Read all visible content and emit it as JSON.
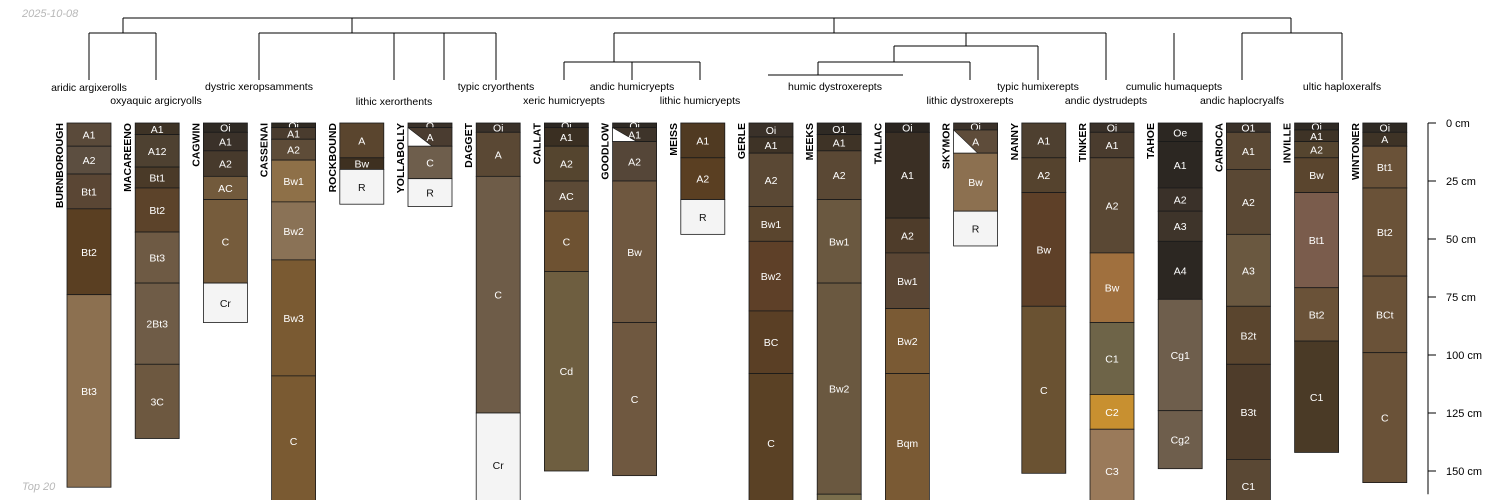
{
  "date": "2025-10-08",
  "footer": "Top 20",
  "depth_axis": {
    "unit": "cm",
    "max_depth": 160,
    "ticks": [
      {
        "depth": 0,
        "label": "0 cm"
      },
      {
        "depth": 25,
        "label": "25 cm"
      },
      {
        "depth": 50,
        "label": "50 cm"
      },
      {
        "depth": 75,
        "label": "75 cm"
      },
      {
        "depth": 100,
        "label": "100 cm"
      },
      {
        "depth": 125,
        "label": "125 cm"
      },
      {
        "depth": 150,
        "label": "150 cm"
      }
    ]
  },
  "taxa": [
    {
      "name": "aridic argixerolls",
      "profile": 0
    },
    {
      "name": "oxyaquic argicryolls",
      "profile": 1
    },
    {
      "name": "dystric xeropsamments",
      "profile": 3
    },
    {
      "name": "lithic xerorthents",
      "profile": 4
    },
    {
      "name": "typic cryorthents",
      "profile": 6
    },
    {
      "name": "xeric humicryepts",
      "profile": 7
    },
    {
      "name": "andic humicryepts",
      "profile": 8
    },
    {
      "name": "lithic humicryepts",
      "profile": 9
    },
    {
      "name": "humic dystroxerepts",
      "profile": 11
    },
    {
      "name": "lithic dystroxerepts",
      "profile": 13
    },
    {
      "name": "typic humixerepts",
      "profile": 14
    },
    {
      "name": "andic dystrudepts",
      "profile": 15
    },
    {
      "name": "cumulic humaquepts",
      "profile": 16
    },
    {
      "name": "andic haplocryalfs",
      "profile": 17
    },
    {
      "name": "ultic haploxeralfs",
      "profile": 19
    }
  ],
  "profiles": [
    {
      "name": "BURNBOROUGH",
      "bottom": 157,
      "horizons": [
        {
          "name": "A1",
          "top": 0,
          "bottom": 10,
          "color": "#5a4a3a"
        },
        {
          "name": "A2",
          "top": 10,
          "bottom": 22,
          "color": "#5c4e40"
        },
        {
          "name": "Bt1",
          "top": 22,
          "bottom": 37,
          "color": "#5a4634"
        },
        {
          "name": "Bt2",
          "top": 37,
          "bottom": 74,
          "color": "#5a3f22"
        },
        {
          "name": "Bt3",
          "top": 74,
          "bottom": 157,
          "color": "#8c7050"
        }
      ]
    },
    {
      "name": "MACAREENO",
      "bottom": 136,
      "horizons": [
        {
          "name": "A1",
          "top": 0,
          "bottom": 5,
          "color": "#3e3326"
        },
        {
          "name": "A12",
          "top": 5,
          "bottom": 19,
          "color": "#4e4131"
        },
        {
          "name": "Bt1",
          "top": 19,
          "bottom": 28,
          "color": "#4a3a28"
        },
        {
          "name": "Bt2",
          "top": 28,
          "bottom": 47,
          "color": "#5c432a"
        },
        {
          "name": "Bt3",
          "top": 47,
          "bottom": 69,
          "color": "#6e5a44"
        },
        {
          "name": "2Bt3",
          "top": 69,
          "bottom": 104,
          "color": "#6f5c47"
        },
        {
          "name": "3C",
          "top": 104,
          "bottom": 136,
          "color": "#6d5840"
        }
      ]
    },
    {
      "name": "CAGWIN",
      "bottom": 86,
      "horizons": [
        {
          "name": "Oi",
          "top": 0,
          "bottom": 4,
          "color": "#2f2a24"
        },
        {
          "name": "A1",
          "top": 4,
          "bottom": 12,
          "color": "#3a3129"
        },
        {
          "name": "A2",
          "top": 12,
          "bottom": 23,
          "color": "#473a2c"
        },
        {
          "name": "AC",
          "top": 23,
          "bottom": 33,
          "color": "#725a3c"
        },
        {
          "name": "C",
          "top": 33,
          "bottom": 69,
          "color": "#765c3c"
        },
        {
          "name": "Cr",
          "top": 69,
          "bottom": 86,
          "color": "#f4f4f4",
          "light": true
        }
      ]
    },
    {
      "name": "CASSENAI",
      "bottom": 165,
      "horizons": [
        {
          "name": "Oi",
          "top": 0,
          "bottom": 2,
          "color": "#302a22"
        },
        {
          "name": "A1",
          "top": 2,
          "bottom": 7,
          "color": "#4a3c2e"
        },
        {
          "name": "A2",
          "top": 7,
          "bottom": 16,
          "color": "#5e4c38"
        },
        {
          "name": "Bw1",
          "top": 16,
          "bottom": 34,
          "color": "#8e7048"
        },
        {
          "name": "Bw2",
          "top": 34,
          "bottom": 59,
          "color": "#8a7256"
        },
        {
          "name": "Bw3",
          "top": 59,
          "bottom": 109,
          "color": "#7a5a32"
        },
        {
          "name": "C",
          "top": 109,
          "bottom": 165,
          "color": "#7a5a32"
        }
      ]
    },
    {
      "name": "ROCKBOUND",
      "bottom": 35,
      "horizons": [
        {
          "name": "A",
          "top": 0,
          "bottom": 15,
          "color": "#5a452e"
        },
        {
          "name": "Bw",
          "top": 15,
          "bottom": 20,
          "color": "#3e3020"
        },
        {
          "name": "R",
          "top": 20,
          "bottom": 35,
          "color": "#f4f4f4",
          "light": true
        }
      ]
    },
    {
      "name": "YOLLABOLLY",
      "bottom": 36,
      "horizons": [
        {
          "name": "O",
          "top": 0,
          "bottom": 2,
          "color": "#3a3129"
        },
        {
          "name": "A",
          "top": 2,
          "bottom": 10,
          "color": "#4a3c30",
          "wedge": true
        },
        {
          "name": "C",
          "top": 10,
          "bottom": 24,
          "color": "#6e5e4c"
        },
        {
          "name": "R",
          "top": 24,
          "bottom": 36,
          "color": "#f4f4f4",
          "light": true
        }
      ]
    },
    {
      "name": "DAGGET",
      "bottom": 170,
      "horizons": [
        {
          "name": "Oi",
          "top": 0,
          "bottom": 4,
          "color": "#3a3129"
        },
        {
          "name": "A",
          "top": 4,
          "bottom": 23,
          "color": "#5a4834"
        },
        {
          "name": "C",
          "top": 23,
          "bottom": 125,
          "color": "#6e5c48"
        },
        {
          "name": "Cr",
          "top": 125,
          "bottom": 170,
          "color": "#f4f4f4",
          "light": true
        }
      ]
    },
    {
      "name": "CALLAT",
      "bottom": 150,
      "horizons": [
        {
          "name": "Oi",
          "top": 0,
          "bottom": 2,
          "color": "#2c2722"
        },
        {
          "name": "A1",
          "top": 2,
          "bottom": 10,
          "color": "#3a2f22"
        },
        {
          "name": "A2",
          "top": 10,
          "bottom": 25,
          "color": "#55452f"
        },
        {
          "name": "AC",
          "top": 25,
          "bottom": 38,
          "color": "#5c4a36"
        },
        {
          "name": "C",
          "top": 38,
          "bottom": 64,
          "color": "#6e5232"
        },
        {
          "name": "Cd",
          "top": 64,
          "bottom": 150,
          "color": "#6e5e40"
        }
      ]
    },
    {
      "name": "GOODLOW",
      "bottom": 152,
      "horizons": [
        {
          "name": "Oi",
          "top": 0,
          "bottom": 2,
          "color": "#2f2a24"
        },
        {
          "name": "A1",
          "top": 2,
          "bottom": 8,
          "color": "#3e342a",
          "wedge": true
        },
        {
          "name": "A2",
          "top": 8,
          "bottom": 25,
          "color": "#554638"
        },
        {
          "name": "Bw",
          "top": 25,
          "bottom": 86,
          "color": "#6f5840"
        },
        {
          "name": "C",
          "top": 86,
          "bottom": 152,
          "color": "#6f5840"
        }
      ]
    },
    {
      "name": "MEISS",
      "bottom": 48,
      "horizons": [
        {
          "name": "A1",
          "top": 0,
          "bottom": 15,
          "color": "#503a22"
        },
        {
          "name": "A2",
          "top": 15,
          "bottom": 33,
          "color": "#5a3f22"
        },
        {
          "name": "R",
          "top": 33,
          "bottom": 48,
          "color": "#f4f4f4",
          "light": true
        }
      ]
    },
    {
      "name": "GERLE",
      "bottom": 168,
      "horizons": [
        {
          "name": "Oi",
          "top": 0,
          "bottom": 6,
          "color": "#3a3129"
        },
        {
          "name": "A1",
          "top": 6,
          "bottom": 13,
          "color": "#3e3326"
        },
        {
          "name": "A2",
          "top": 13,
          "bottom": 36,
          "color": "#5a4834"
        },
        {
          "name": "Bw1",
          "top": 36,
          "bottom": 51,
          "color": "#5a452e"
        },
        {
          "name": "Bw2",
          "top": 51,
          "bottom": 81,
          "color": "#5e4028"
        },
        {
          "name": "BC",
          "top": 81,
          "bottom": 108,
          "color": "#5a3f25"
        },
        {
          "name": "C",
          "top": 108,
          "bottom": 168,
          "color": "#5a4125"
        }
      ]
    },
    {
      "name": "MEEKS",
      "bottom": 168,
      "horizons": [
        {
          "name": "O1",
          "top": 0,
          "bottom": 5,
          "color": "#2f2a24"
        },
        {
          "name": "A1",
          "top": 5,
          "bottom": 12,
          "color": "#3e3326"
        },
        {
          "name": "A2",
          "top": 12,
          "bottom": 33,
          "color": "#5a4834"
        },
        {
          "name": "Bw1",
          "top": 33,
          "bottom": 69,
          "color": "#6a5840"
        },
        {
          "name": "Bw2",
          "top": 69,
          "bottom": 160,
          "color": "#6a5840"
        },
        {
          "name": "",
          "top": 160,
          "bottom": 168,
          "color": "#7a6e4c"
        }
      ]
    },
    {
      "name": "TALLAC",
      "bottom": 168,
      "horizons": [
        {
          "name": "Oi",
          "top": 0,
          "bottom": 4,
          "color": "#2a2520"
        },
        {
          "name": "A1",
          "top": 4,
          "bottom": 41,
          "color": "#3a2f24"
        },
        {
          "name": "A2",
          "top": 41,
          "bottom": 56,
          "color": "#4e3c2a"
        },
        {
          "name": "Bw1",
          "top": 56,
          "bottom": 80,
          "color": "#5a4634"
        },
        {
          "name": "Bw2",
          "top": 80,
          "bottom": 108,
          "color": "#7a5a34"
        },
        {
          "name": "Bqm",
          "top": 108,
          "bottom": 168,
          "color": "#7a5a34"
        }
      ]
    },
    {
      "name": "SKYMOR",
      "bottom": 53,
      "horizons": [
        {
          "name": "Oi",
          "top": 0,
          "bottom": 3,
          "color": "#3a3129"
        },
        {
          "name": "A",
          "top": 3,
          "bottom": 13,
          "color": "#5e4c3a",
          "wedge": true
        },
        {
          "name": "Bw",
          "top": 13,
          "bottom": 38,
          "color": "#8c7050"
        },
        {
          "name": "R",
          "top": 38,
          "bottom": 53,
          "color": "#f4f4f4",
          "light": true
        }
      ]
    },
    {
      "name": "NANNY",
      "bottom": 151,
      "horizons": [
        {
          "name": "A1",
          "top": 0,
          "bottom": 15,
          "color": "#4e4030"
        },
        {
          "name": "A2",
          "top": 15,
          "bottom": 30,
          "color": "#55432e"
        },
        {
          "name": "Bw",
          "top": 30,
          "bottom": 79,
          "color": "#5e4028"
        },
        {
          "name": "C",
          "top": 79,
          "bottom": 151,
          "color": "#6a5232"
        }
      ]
    },
    {
      "name": "TINKER",
      "bottom": 168,
      "horizons": [
        {
          "name": "Oi",
          "top": 0,
          "bottom": 4,
          "color": "#3a3129"
        },
        {
          "name": "A1",
          "top": 4,
          "bottom": 15,
          "color": "#4a3c2e"
        },
        {
          "name": "A2",
          "top": 15,
          "bottom": 56,
          "color": "#5a4834"
        },
        {
          "name": "Bw",
          "top": 56,
          "bottom": 86,
          "color": "#a0703e"
        },
        {
          "name": "C1",
          "top": 86,
          "bottom": 117,
          "color": "#6e6448"
        },
        {
          "name": "C2",
          "top": 117,
          "bottom": 132,
          "color": "#c89030"
        },
        {
          "name": "C3",
          "top": 132,
          "bottom": 168,
          "color": "#9a7a5a"
        }
      ]
    },
    {
      "name": "TAHOE",
      "bottom": 149,
      "horizons": [
        {
          "name": "Oe",
          "top": 0,
          "bottom": 8,
          "color": "#2c2722"
        },
        {
          "name": "A1",
          "top": 8,
          "bottom": 28,
          "color": "#2c2722"
        },
        {
          "name": "A2",
          "top": 28,
          "bottom": 38,
          "color": "#3a3129"
        },
        {
          "name": "A3",
          "top": 38,
          "bottom": 51,
          "color": "#3e342a"
        },
        {
          "name": "A4",
          "top": 51,
          "bottom": 76,
          "color": "#2c2722"
        },
        {
          "name": "Cg1",
          "top": 76,
          "bottom": 124,
          "color": "#6e5e4c"
        },
        {
          "name": "Cg2",
          "top": 124,
          "bottom": 149,
          "color": "#6e5e4c"
        }
      ]
    },
    {
      "name": "CARIOCA",
      "bottom": 168,
      "horizons": [
        {
          "name": "O1",
          "top": 0,
          "bottom": 4,
          "color": "#3a3129"
        },
        {
          "name": "A1",
          "top": 4,
          "bottom": 20,
          "color": "#5a4834"
        },
        {
          "name": "A2",
          "top": 20,
          "bottom": 48,
          "color": "#5a4834"
        },
        {
          "name": "A3",
          "top": 48,
          "bottom": 79,
          "color": "#6a5840"
        },
        {
          "name": "B2t",
          "top": 79,
          "bottom": 104,
          "color": "#5a452e"
        },
        {
          "name": "B3t",
          "top": 104,
          "bottom": 145,
          "color": "#4e3c2a"
        },
        {
          "name": "C1",
          "top": 145,
          "bottom": 168,
          "color": "#5a4834"
        }
      ]
    },
    {
      "name": "INVILLE",
      "bottom": 142,
      "horizons": [
        {
          "name": "Oi",
          "top": 0,
          "bottom": 3,
          "color": "#2f2a24"
        },
        {
          "name": "A1",
          "top": 3,
          "bottom": 8,
          "color": "#3e3326"
        },
        {
          "name": "A2",
          "top": 8,
          "bottom": 15,
          "color": "#55452f"
        },
        {
          "name": "Bw",
          "top": 15,
          "bottom": 30,
          "color": "#5a452e"
        },
        {
          "name": "Bt1",
          "top": 30,
          "bottom": 71,
          "color": "#7a5c4c"
        },
        {
          "name": "Bt2",
          "top": 71,
          "bottom": 94,
          "color": "#6a5238"
        },
        {
          "name": "C1",
          "top": 94,
          "bottom": 142,
          "color": "#4a3a26"
        }
      ]
    },
    {
      "name": "WINTONER",
      "bottom": 155,
      "horizons": [
        {
          "name": "Oi",
          "top": 0,
          "bottom": 4,
          "color": "#2f2a24"
        },
        {
          "name": "A",
          "top": 4,
          "bottom": 10,
          "color": "#3e3326"
        },
        {
          "name": "Bt1",
          "top": 10,
          "bottom": 28,
          "color": "#6a5238"
        },
        {
          "name": "Bt2",
          "top": 28,
          "bottom": 66,
          "color": "#6a5238"
        },
        {
          "name": "BCt",
          "top": 66,
          "bottom": 99,
          "color": "#6a5238"
        },
        {
          "name": "C",
          "top": 99,
          "bottom": 155,
          "color": "#6a5238"
        }
      ]
    }
  ]
}
